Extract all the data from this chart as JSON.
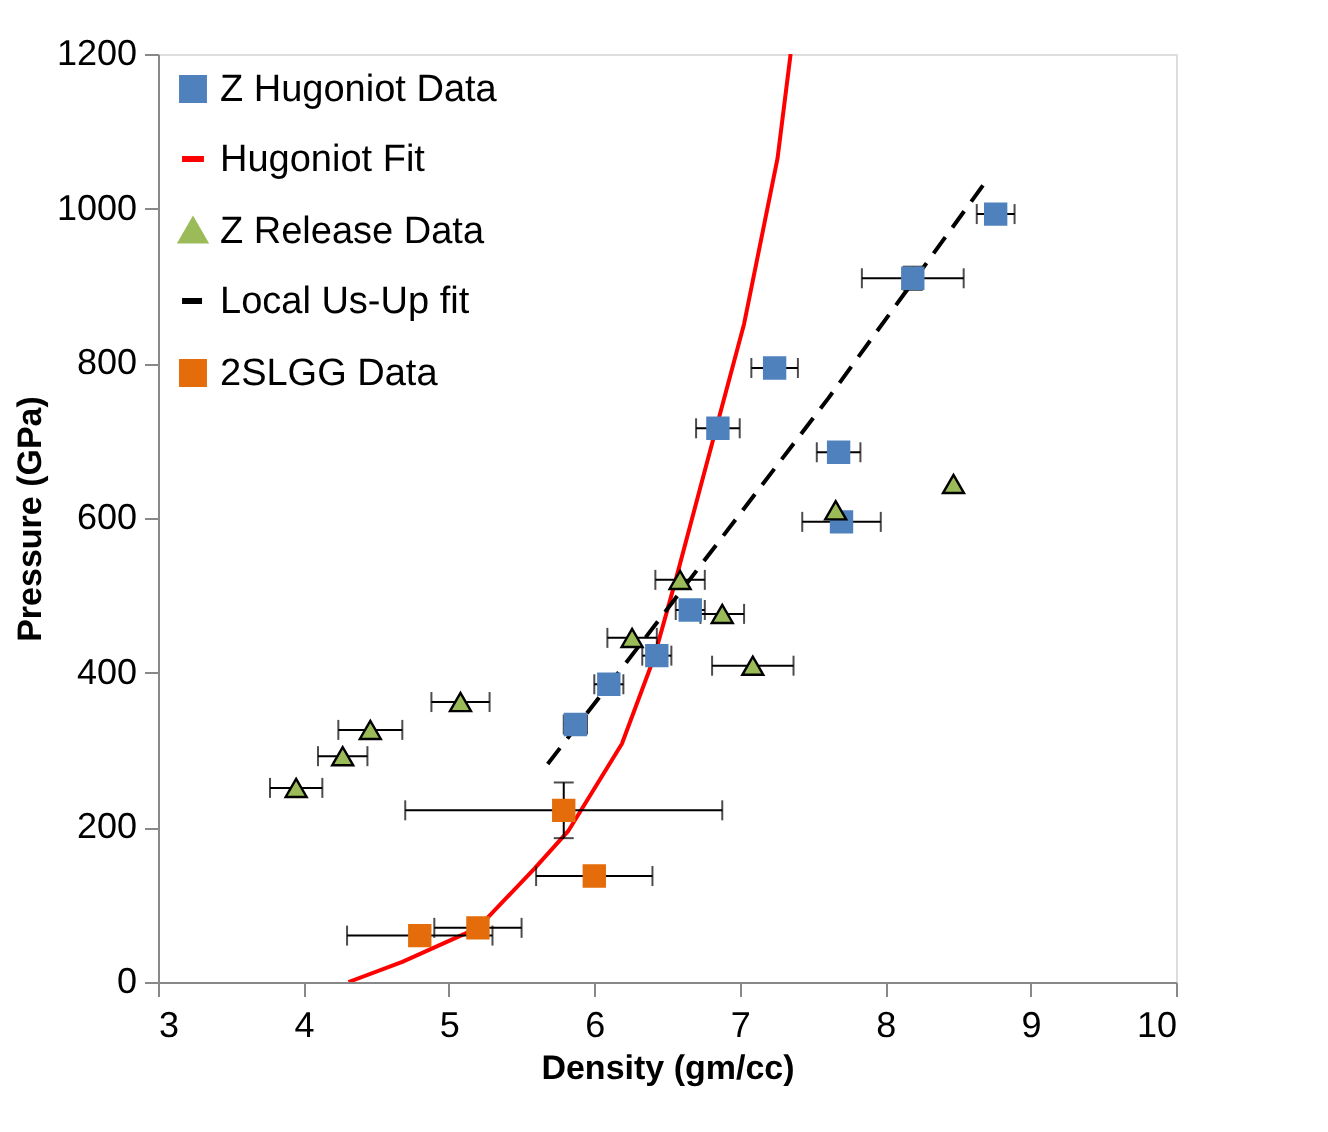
{
  "chart_data": {
    "type": "scatter",
    "xlabel": "Density (gm/cc)",
    "ylabel": "Pressure (GPa)",
    "xlim": [
      3,
      10
    ],
    "xticks": [
      3,
      4,
      5,
      6,
      7,
      8,
      9,
      10
    ],
    "ylim": [
      0,
      1200
    ],
    "yticks": [
      0,
      200,
      400,
      600,
      800,
      1000,
      1200
    ],
    "grid": false,
    "legend": "top left",
    "series": [
      {
        "name": "Z Hugoniot Data",
        "marker": "square",
        "color": "#4f81bd",
        "x": [
          8.76,
          8.19,
          7.24,
          6.85,
          7.68,
          7.7,
          6.66,
          6.43,
          6.1,
          5.87
        ],
        "values": [
          993,
          910,
          794,
          716,
          685,
          595,
          481,
          422,
          385,
          333
        ],
        "xerrors": [
          0.13,
          0.35,
          0.16,
          0.15,
          0.15,
          0.27,
          0.1,
          0.1,
          0.1,
          0.08
        ],
        "errors": [
          null,
          15,
          null,
          null,
          null,
          null,
          null,
          null,
          null,
          null
        ]
      },
      {
        "name": "Hugoniot Fit",
        "type": "line",
        "marker": "none",
        "line_style": "solid",
        "color": "#ff0000",
        "x": [
          4.31,
          4.68,
          5.2,
          5.59,
          5.82,
          6.19,
          6.41,
          6.56,
          6.73,
          7.03,
          7.26,
          7.35
        ],
        "values": [
          0,
          26,
          70,
          147,
          195,
          308,
          419,
          520,
          640,
          851,
          1065,
          1200
        ]
      },
      {
        "name": "Z Release Data",
        "marker": "triangle",
        "color": "#9bbb59",
        "x": [
          7.66,
          8.47,
          6.59,
          6.88,
          6.26,
          7.09,
          5.08,
          4.46,
          4.27,
          3.95
        ],
        "values": [
          610,
          644,
          520,
          476,
          445,
          409,
          362,
          326,
          292,
          251
        ],
        "xerrors": [
          null,
          null,
          0.17,
          0.15,
          0.17,
          0.28,
          0.2,
          0.22,
          0.17,
          0.18
        ]
      },
      {
        "name": "Local Us-Up fit",
        "type": "line",
        "marker": "none",
        "line_style": "dashed",
        "color": "#000000",
        "x": [
          5.68,
          6.33,
          7.61,
          8.68
        ],
        "values": [
          282,
          440,
          755,
          1032
        ]
      },
      {
        "name": "2SLGG Data",
        "marker": "square",
        "color": "#e46c0a",
        "x": [
          5.79,
          6.0,
          4.8,
          5.2
        ],
        "values": [
          222,
          137,
          60,
          70
        ],
        "xerrors": [
          1.09,
          0.4,
          0.5,
          0.3
        ],
        "errors": [
          36,
          null,
          null,
          null
        ]
      }
    ]
  }
}
